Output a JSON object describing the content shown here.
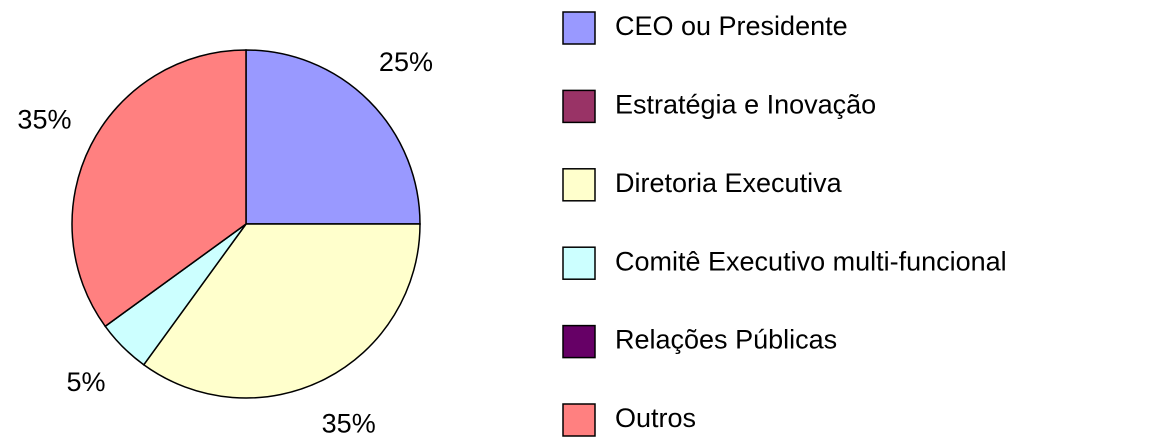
{
  "chart_data": {
    "type": "pie",
    "categories": [
      "CEO ou Presidente",
      "Estratégia e Inovação",
      "Diretoria Executiva",
      "Comitê Executivo multi-funcional",
      "Relações Públicas",
      "Outros"
    ],
    "values": [
      25,
      0,
      35,
      5,
      0,
      35
    ],
    "value_labels": [
      "25%",
      null,
      "35%",
      "5%",
      null,
      "35%"
    ],
    "colors": [
      "#9999ff",
      "#993366",
      "#ffffcc",
      "#ccffff",
      "#660066",
      "#ff8080"
    ],
    "legend": "right"
  }
}
